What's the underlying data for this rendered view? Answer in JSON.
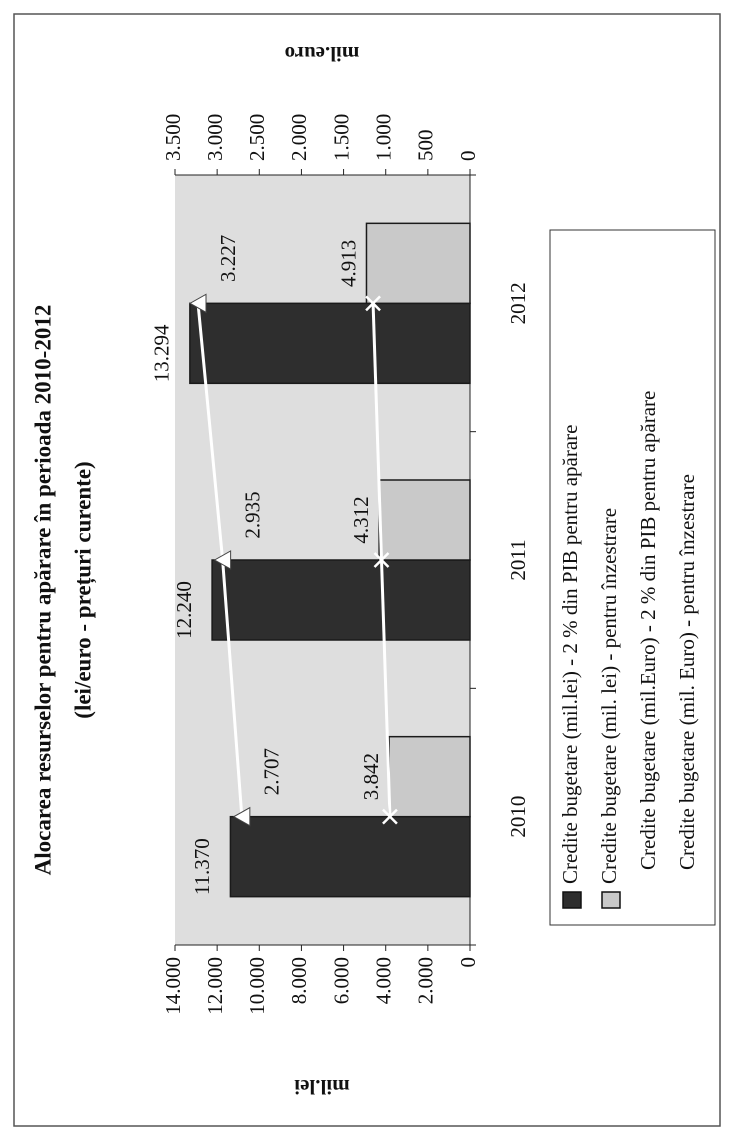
{
  "chart_data": {
    "type": "combo",
    "title": "Alocarea resurselor pentru apărare  în perioada 2010-2012",
    "subtitle": "(lei/euro - prețuri curente)",
    "ylabel": "mil.lei",
    "y2label": "mil.euro",
    "categories": [
      "2010",
      "2011",
      "2012"
    ],
    "ylim": [
      0,
      14000
    ],
    "yticks": [
      0,
      {
        "value": 2000,
        "label": "2.000"
      },
      {
        "value": 4000,
        "label": "4.000"
      },
      {
        "value": 6000,
        "label": "6.000"
      },
      {
        "value": 8000,
        "label": "8.000"
      },
      {
        "value": 10000,
        "label": "10.000"
      },
      {
        "value": 12000,
        "label": "12.000"
      },
      {
        "value": 14000,
        "label": "14.000"
      }
    ],
    "y2lim": [
      0,
      3500
    ],
    "y2ticks": [
      0,
      500,
      {
        "value": 1000,
        "label": "1.000"
      },
      {
        "value": 1500,
        "label": "1.500"
      },
      {
        "value": 2000,
        "label": "2.000"
      },
      {
        "value": 2500,
        "label": "2.500"
      },
      {
        "value": 3000,
        "label": "3.000"
      },
      {
        "value": 3500,
        "label": "3.500"
      }
    ],
    "series": [
      {
        "name": "Credite bugetare (mil.lei) - 2 % din PIB pentru apărare",
        "type": "bar",
        "color": "#2e2e2e",
        "values": [
          11370,
          12240,
          13294
        ],
        "value_labels": [
          "11.370",
          "12.240",
          "13.294"
        ]
      },
      {
        "name": "Credite bugetare (mil. lei) - pentru înzestrare",
        "type": "bar",
        "color": "#c9c9c9",
        "values": [
          3842,
          4312,
          4913
        ],
        "value_labels": [
          "3.842",
          "4.312",
          "4.913"
        ]
      },
      {
        "name": "Credite bugetare (mil.Euro) - 2 % din PIB pentru apărare",
        "type": "line",
        "axis": "y2",
        "color": "#ffffff",
        "values": [
          2707,
          2935,
          3227
        ],
        "value_labels": [
          "2.707",
          "2.935",
          "3.227"
        ]
      },
      {
        "name": "Credite bugetare (mil. Euro) - pentru înzestrare",
        "type": "line",
        "axis": "y2",
        "color": "#ffffff",
        "values": [
          950,
          1050,
          1150
        ]
      }
    ]
  }
}
